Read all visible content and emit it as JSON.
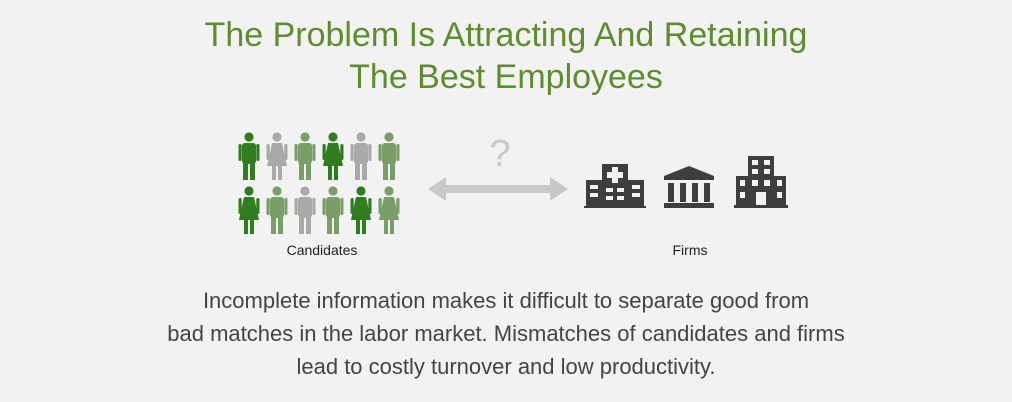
{
  "title": {
    "line1": "The Problem Is Attracting And Retaining",
    "line2": "The Best Employees"
  },
  "diagram": {
    "question_mark": "?",
    "candidates_label": "Candidates",
    "firms_label": "Firms",
    "people": [
      {
        "gender": "male",
        "color": "#2f7d1f"
      },
      {
        "gender": "female",
        "color": "#a9a9a9"
      },
      {
        "gender": "male",
        "color": "#7a9e68"
      },
      {
        "gender": "female",
        "color": "#2f7d1f"
      },
      {
        "gender": "male",
        "color": "#a9a9a9"
      },
      {
        "gender": "male",
        "color": "#7a9e68"
      },
      {
        "gender": "female",
        "color": "#2f7d1f"
      },
      {
        "gender": "male",
        "color": "#7a9e68"
      },
      {
        "gender": "male",
        "color": "#a9a9a9"
      },
      {
        "gender": "male",
        "color": "#7a9e68"
      },
      {
        "gender": "female",
        "color": "#2f7d1f"
      },
      {
        "gender": "female",
        "color": "#7a9e68"
      }
    ],
    "firms": [
      "hospital-icon",
      "bank-icon",
      "office-building-icon"
    ]
  },
  "description": {
    "line1": "Incomplete information makes it difficult to separate good from",
    "line2": "bad matches in the labor market. Mismatches of candidates and firms",
    "line3": "lead to costly turnover and low productivity."
  }
}
